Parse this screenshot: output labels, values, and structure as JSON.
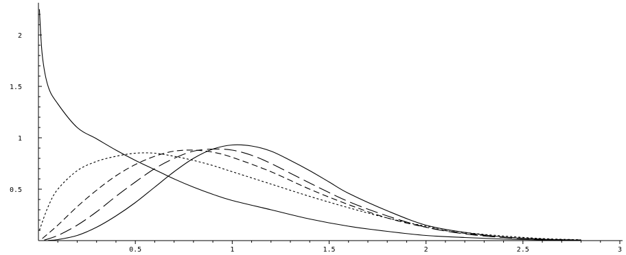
{
  "chart_data": {
    "type": "line",
    "title": "",
    "xlabel": "",
    "ylabel": "",
    "xlim": [
      0,
      3
    ],
    "ylim": [
      0,
      2.3
    ],
    "grid": false,
    "legend": "none",
    "x_ticks": [
      {
        "value": 0.5,
        "label": "0.5"
      },
      {
        "value": 1,
        "label": "1"
      },
      {
        "value": 1.5,
        "label": "1.5"
      },
      {
        "value": 2,
        "label": "2"
      },
      {
        "value": 2.5,
        "label": "2.5"
      },
      {
        "value": 3,
        "label": "3"
      }
    ],
    "y_ticks": [
      {
        "value": 0.5,
        "label": "0.5"
      },
      {
        "value": 1,
        "label": "1"
      },
      {
        "value": 1.5,
        "label": "1.5"
      },
      {
        "value": 2,
        "label": "2"
      }
    ],
    "series": [
      {
        "style": "solid",
        "x": [
          0.005,
          0.02,
          0.05,
          0.1,
          0.2,
          0.3,
          0.4,
          0.5,
          0.6,
          0.7,
          0.8,
          0.9,
          1.0,
          1.2,
          1.4,
          1.6,
          1.8,
          2.0,
          2.2,
          2.4,
          2.6,
          2.8
        ],
        "y": [
          2.25,
          1.8,
          1.5,
          1.33,
          1.1,
          0.99,
          0.88,
          0.78,
          0.69,
          0.6,
          0.52,
          0.45,
          0.39,
          0.3,
          0.21,
          0.14,
          0.09,
          0.05,
          0.03,
          0.015,
          0.006,
          0.002
        ]
      },
      {
        "style": "short-dashed",
        "x": [
          0.005,
          0.05,
          0.1,
          0.2,
          0.3,
          0.4,
          0.5,
          0.6,
          0.7,
          0.8,
          0.9,
          1.0,
          1.2,
          1.4,
          1.6,
          1.8,
          2.0,
          2.2,
          2.4,
          2.6,
          2.8
        ],
        "y": [
          0.1,
          0.33,
          0.5,
          0.68,
          0.77,
          0.82,
          0.85,
          0.85,
          0.82,
          0.78,
          0.73,
          0.67,
          0.55,
          0.43,
          0.32,
          0.22,
          0.14,
          0.08,
          0.045,
          0.02,
          0.008
        ]
      },
      {
        "style": "medium-dashed",
        "x": [
          0.02,
          0.1,
          0.2,
          0.3,
          0.4,
          0.5,
          0.6,
          0.7,
          0.8,
          0.9,
          1.0,
          1.2,
          1.4,
          1.6,
          1.8,
          2.0,
          2.2,
          2.4,
          2.6,
          2.8
        ],
        "y": [
          0.02,
          0.15,
          0.33,
          0.49,
          0.63,
          0.74,
          0.82,
          0.87,
          0.88,
          0.86,
          0.81,
          0.67,
          0.5,
          0.35,
          0.22,
          0.13,
          0.07,
          0.035,
          0.015,
          0.006
        ]
      },
      {
        "style": "long-dashed",
        "x": [
          0.03,
          0.1,
          0.2,
          0.3,
          0.4,
          0.5,
          0.6,
          0.7,
          0.8,
          0.9,
          1.0,
          1.1,
          1.2,
          1.4,
          1.6,
          1.8,
          2.0,
          2.2,
          2.4,
          2.6,
          2.8
        ],
        "y": [
          0.005,
          0.05,
          0.15,
          0.28,
          0.43,
          0.57,
          0.7,
          0.8,
          0.87,
          0.89,
          0.88,
          0.83,
          0.75,
          0.56,
          0.38,
          0.24,
          0.13,
          0.065,
          0.03,
          0.012,
          0.004
        ]
      },
      {
        "style": "solid",
        "x": [
          0.05,
          0.1,
          0.2,
          0.3,
          0.4,
          0.5,
          0.6,
          0.7,
          0.8,
          0.9,
          1.0,
          1.1,
          1.2,
          1.3,
          1.4,
          1.5,
          1.6,
          1.8,
          2.0,
          2.2,
          2.4,
          2.6,
          2.8
        ],
        "y": [
          0.002,
          0.01,
          0.05,
          0.13,
          0.24,
          0.37,
          0.52,
          0.67,
          0.8,
          0.89,
          0.93,
          0.92,
          0.87,
          0.78,
          0.68,
          0.57,
          0.46,
          0.29,
          0.15,
          0.08,
          0.035,
          0.013,
          0.004
        ]
      }
    ]
  }
}
